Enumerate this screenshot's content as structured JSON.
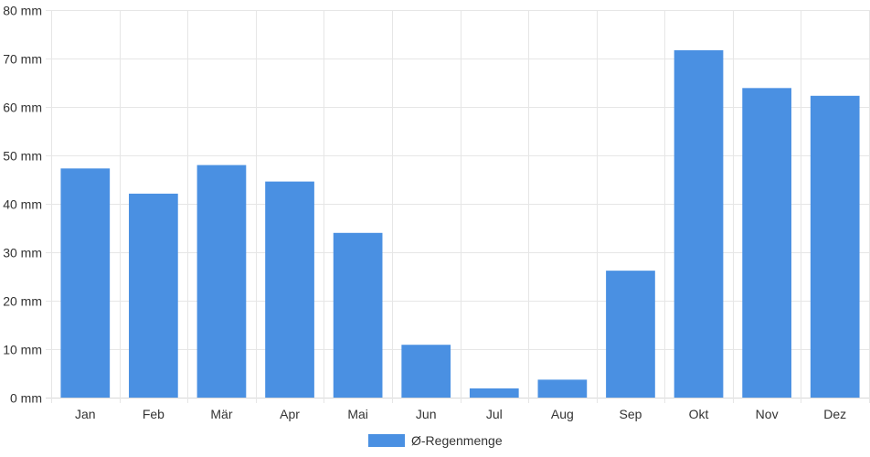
{
  "chart_data": {
    "type": "bar",
    "categories": [
      "Jan",
      "Feb",
      "Mär",
      "Apr",
      "Mai",
      "Jun",
      "Jul",
      "Aug",
      "Sep",
      "Okt",
      "Nov",
      "Dez"
    ],
    "series": [
      {
        "name": "Ø-Regenmenge",
        "values": [
          47.3,
          42.1,
          48.0,
          44.6,
          34.0,
          10.9,
          1.9,
          3.7,
          26.2,
          71.7,
          63.9,
          62.3
        ],
        "color": "#4a90e2"
      }
    ],
    "y_unit": "mm",
    "ylim": [
      0,
      80
    ],
    "y_ticks": [
      0,
      10,
      20,
      30,
      40,
      50,
      60,
      70,
      80
    ],
    "y_tick_labels": [
      "0 mm",
      "10 mm",
      "20 mm",
      "30 mm",
      "40 mm",
      "50 mm",
      "60 mm",
      "70 mm",
      "80 mm"
    ],
    "grid": true,
    "legend_position": "bottom"
  }
}
